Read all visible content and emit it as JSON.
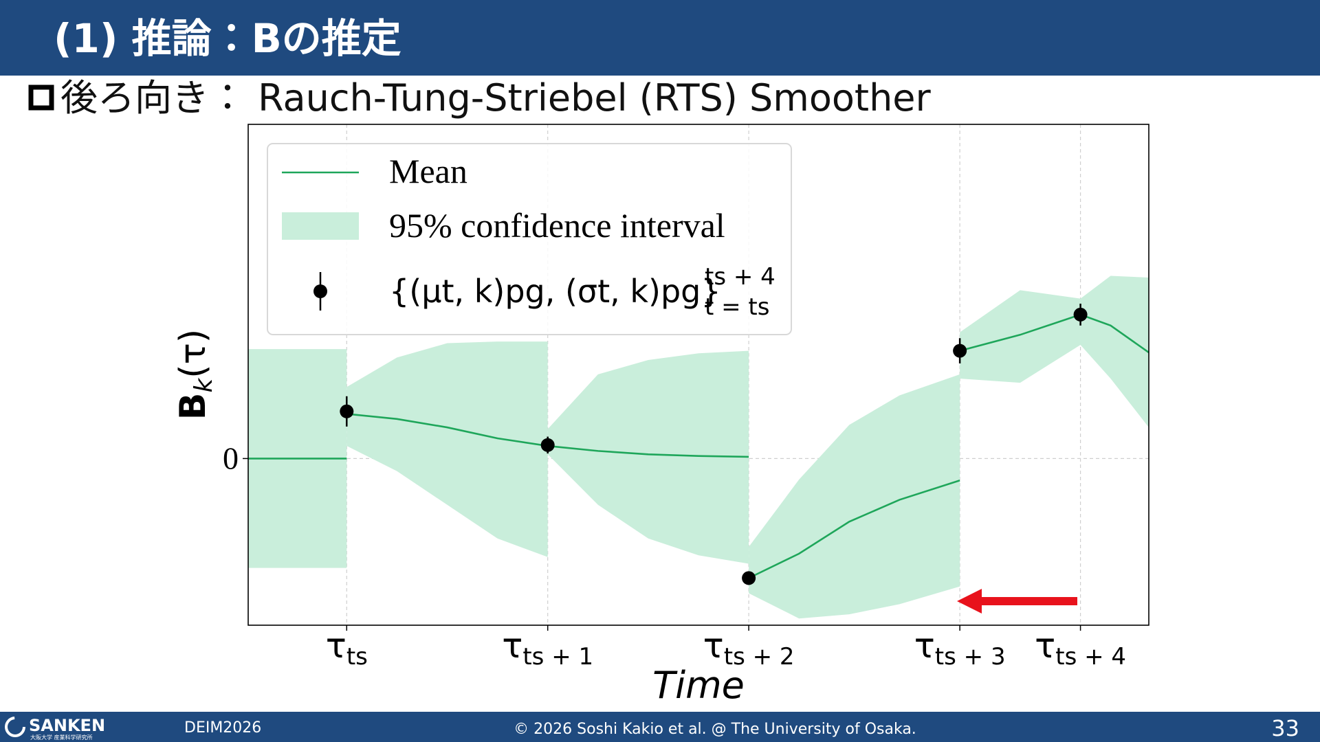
{
  "header": {
    "title": "(1) 推論：Bの推定"
  },
  "subtitle": "後ろ向き： Rauch-Tung-Striebel (RTS) Smoother",
  "chart_data": {
    "type": "line",
    "xlabel": "Time",
    "ylabel": {
      "base": "B",
      "sub": "k",
      "rest": "(τ)"
    },
    "xlim": [
      -0.49,
      3.99
    ],
    "ylim": [
      -1.98,
      3.97
    ],
    "xticks": [
      {
        "value": 0,
        "label": "τ",
        "sub": "ts"
      },
      {
        "value": 1,
        "label": "τ",
        "sub": "ts + 1"
      },
      {
        "value": 2,
        "label": "τ",
        "sub": "ts + 2"
      },
      {
        "value": 3.05,
        "label": "τ",
        "sub": "ts + 3"
      },
      {
        "value": 3.65,
        "label": "τ",
        "sub": "ts + 4"
      }
    ],
    "yticks": [
      0
    ],
    "grid": true,
    "legend": "upper left",
    "x": [
      -0.49,
      0,
      0,
      0,
      0.25,
      0.5,
      0.75,
      1,
      1,
      1,
      1.25,
      1.5,
      1.75,
      2,
      2,
      2,
      2.25,
      2.5,
      2.75,
      3.05,
      3.05,
      3.05,
      3.35,
      3.65,
      3.8,
      3.99
    ],
    "series": [
      {
        "name": "Mean",
        "color": "#1ea65a",
        "values": [
          0,
          0,
          null,
          0.53,
          0.47,
          0.37,
          0.24,
          0.15,
          null,
          0.15,
          0.09,
          0.05,
          0.03,
          0.02,
          null,
          -1.42,
          -1.13,
          -0.75,
          -0.49,
          -0.26,
          null,
          1.28,
          1.47,
          1.71,
          1.58,
          1.26
        ]
      }
    ],
    "band": {
      "name": "95% confidence interval",
      "color": "#c9eedb",
      "upper": [
        1.3,
        1.3,
        null,
        0.85,
        1.2,
        1.37,
        1.39,
        1.39,
        null,
        0.35,
        1.0,
        1.17,
        1.25,
        1.28,
        null,
        -1.05,
        -0.25,
        0.4,
        0.75,
        1.0,
        null,
        1.5,
        2.0,
        1.9,
        2.17,
        2.15
      ],
      "lower": [
        -1.3,
        -1.3,
        null,
        0.15,
        -0.15,
        -0.55,
        -0.95,
        -1.17,
        null,
        0.05,
        -0.55,
        -0.95,
        -1.15,
        -1.25,
        null,
        -1.6,
        -1.9,
        -1.85,
        -1.73,
        -1.52,
        null,
        0.95,
        0.9,
        1.35,
        0.95,
        0.37
      ]
    },
    "points": {
      "name": "{(μt, k)pg, (σt, k)pg}",
      "name_sup": "ts + 4",
      "name_sub": "t = ts",
      "color": "#000000",
      "x": [
        0,
        1,
        2,
        3.05,
        3.65
      ],
      "values": [
        0.56,
        0.16,
        -1.42,
        1.28,
        1.71
      ],
      "errors": [
        0.18,
        0.1,
        0.08,
        0.15,
        0.13
      ]
    }
  },
  "footer": {
    "logo": "SANKEN",
    "logo_sub": "大阪大学 産業科学研究所",
    "event": "DEIM2026",
    "copyright": "© 2026 Soshi Kakio et al. @ The University of Osaka.",
    "page": "33"
  }
}
